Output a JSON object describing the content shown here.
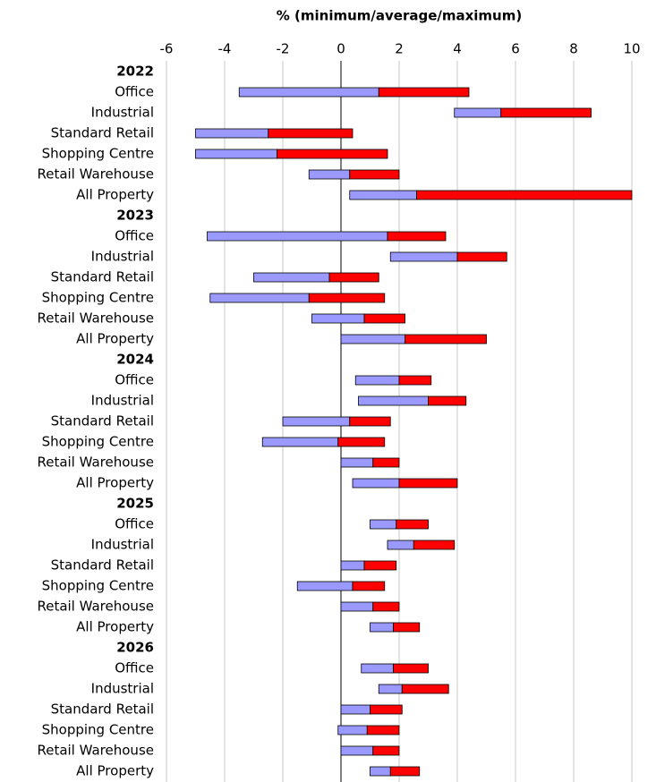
{
  "chart_data": {
    "type": "floating-bar",
    "title": "% (minimum/average/maximum)",
    "categories": [
      "2022",
      "Office",
      "Industrial",
      "Standard Retail",
      "Shopping Centre",
      "Retail Warehouse",
      "All Property",
      "2023",
      "Office",
      "Industrial",
      "Standard Retail",
      "Shopping Centre",
      "Retail Warehouse",
      "All Property",
      "2024",
      "Office",
      "Industrial",
      "Standard Retail",
      "Shopping Centre",
      "Retail Warehouse",
      "All Property",
      "2025",
      "Office",
      "Industrial",
      "Standard Retail",
      "Shopping Centre",
      "Retail Warehouse",
      "All Property",
      "2026",
      "Office",
      "Industrial",
      "Standard Retail",
      "Shopping Centre",
      "Retail Warehouse",
      "All Property"
    ],
    "minimum": [
      null,
      -3.5,
      3.9,
      -5.0,
      -5.0,
      -1.1,
      0.3,
      null,
      -4.6,
      1.7,
      -3.0,
      -4.5,
      -1.0,
      0.0,
      null,
      0.5,
      0.6,
      -2.0,
      -2.7,
      0.0,
      0.4,
      null,
      1.0,
      1.6,
      0.0,
      -1.5,
      0.0,
      1.0,
      null,
      0.7,
      1.3,
      0.0,
      -0.1,
      0.0,
      1.0
    ],
    "average": [
      null,
      1.3,
      5.5,
      -2.5,
      -2.2,
      0.3,
      2.6,
      null,
      1.6,
      4.0,
      -0.4,
      -1.1,
      0.8,
      2.2,
      null,
      2.0,
      3.0,
      0.3,
      -0.1,
      1.1,
      2.0,
      null,
      1.9,
      2.5,
      0.8,
      0.4,
      1.1,
      1.8,
      null,
      1.8,
      2.1,
      1.0,
      0.9,
      1.1,
      1.7
    ],
    "maximum": [
      null,
      4.4,
      8.6,
      0.4,
      1.6,
      2.0,
      10.0,
      null,
      3.6,
      5.7,
      1.3,
      1.5,
      2.2,
      5.0,
      null,
      3.1,
      4.3,
      1.7,
      1.5,
      2.0,
      4.0,
      null,
      3.0,
      3.9,
      1.9,
      1.5,
      2.0,
      2.7,
      null,
      3.0,
      3.7,
      2.1,
      2.0,
      2.0,
      2.7
    ],
    "low_color": "#9999ff",
    "high_color": "#ff0000",
    "xlim": [
      -6,
      10
    ],
    "xticks": [
      -6,
      -4,
      -2,
      0,
      2,
      4,
      6,
      8,
      10
    ],
    "grid": true
  }
}
